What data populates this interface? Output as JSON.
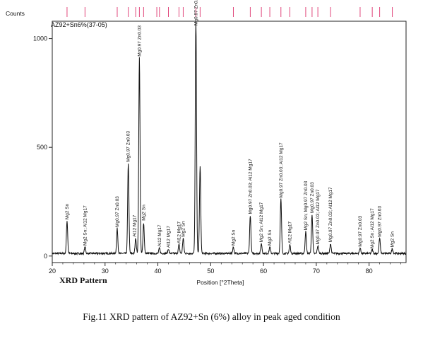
{
  "chart_data": {
    "type": "line",
    "title": "AZ92+Sn6%(37-05)",
    "ylabel": "Counts",
    "xlabel": "Position [°2Theta]",
    "xlim": [
      20,
      87
    ],
    "ylim": [
      -30,
      1080
    ],
    "x_ticks": [
      20,
      30,
      40,
      50,
      60,
      70,
      80
    ],
    "y_ticks": [
      0,
      500,
      1000
    ],
    "x_tick_labels": [
      "20",
      "30",
      "40",
      "50",
      "60",
      "70",
      "80"
    ],
    "y_tick_labels": [
      "0",
      "500",
      "1000"
    ],
    "baseline": 12,
    "peaks": [
      {
        "x": 22.8,
        "y": 150
      },
      {
        "x": 26.2,
        "y": 30
      },
      {
        "x": 32.3,
        "y": 115
      },
      {
        "x": 34.4,
        "y": 415
      },
      {
        "x": 35.8,
        "y": 70
      },
      {
        "x": 36.5,
        "y": 900
      },
      {
        "x": 37.3,
        "y": 140
      },
      {
        "x": 40.3,
        "y": 25
      },
      {
        "x": 42.0,
        "y": 20
      },
      {
        "x": 44.0,
        "y": 40
      },
      {
        "x": 44.8,
        "y": 70
      },
      {
        "x": 47.2,
        "y": 1090
      },
      {
        "x": 48.0,
        "y": 400
      },
      {
        "x": 54.3,
        "y": 30
      },
      {
        "x": 57.5,
        "y": 175
      },
      {
        "x": 59.6,
        "y": 45
      },
      {
        "x": 61.2,
        "y": 30
      },
      {
        "x": 63.3,
        "y": 250
      },
      {
        "x": 65.0,
        "y": 40
      },
      {
        "x": 68.0,
        "y": 100
      },
      {
        "x": 69.2,
        "y": 180
      },
      {
        "x": 70.3,
        "y": 35
      },
      {
        "x": 72.7,
        "y": 45
      },
      {
        "x": 78.3,
        "y": 25
      },
      {
        "x": 80.6,
        "y": 18
      },
      {
        "x": 82.0,
        "y": 70
      },
      {
        "x": 84.4,
        "y": 22
      }
    ],
    "reference_lines": [
      22.8,
      26.2,
      32.3,
      34.4,
      35.8,
      36.5,
      37.3,
      39.8,
      40.3,
      42.0,
      44.0,
      44.8,
      47.2,
      48.0,
      54.3,
      57.5,
      59.6,
      61.2,
      63.3,
      65.0,
      68.0,
      69.2,
      70.3,
      72.7,
      78.3,
      80.6,
      82.0,
      84.4
    ],
    "annotations": [
      {
        "x": 22.8,
        "y": 155,
        "text": "Mg2 Sn"
      },
      {
        "x": 26.2,
        "y": 35,
        "text": "Mg2 Sn; Al12 Mg17"
      },
      {
        "x": 32.3,
        "y": 120,
        "text": "Mg0.97 Zn0.03"
      },
      {
        "x": 34.4,
        "y": 420,
        "text": "Mg0.97 Zn0.03"
      },
      {
        "x": 35.6,
        "y": 75,
        "text": "Al12 Mg17"
      },
      {
        "x": 36.5,
        "y": 905,
        "text": "Mg0.97 Zn0.03"
      },
      {
        "x": 37.3,
        "y": 150,
        "text": "Mg2 Sn"
      },
      {
        "x": 40.3,
        "y": 30,
        "text": "Al12 Mg17"
      },
      {
        "x": 42.0,
        "y": 25,
        "text": "Al12 Mg17"
      },
      {
        "x": 44.0,
        "y": 45,
        "text": "Al12 Mg17"
      },
      {
        "x": 44.8,
        "y": 75,
        "text": "Mg2 Sn"
      },
      {
        "x": 47.2,
        "y": 1095,
        "text": "Mg0.97 Zn0.03"
      },
      {
        "x": 54.3,
        "y": 35,
        "text": "Mg2 Sn"
      },
      {
        "x": 57.5,
        "y": 180,
        "text": "Mg0.97 Zn0.03; Al12 Mg17"
      },
      {
        "x": 59.6,
        "y": 50,
        "text": "Mg2 Sn; Al12 Mg17"
      },
      {
        "x": 61.2,
        "y": 35,
        "text": "Mg2 Sn"
      },
      {
        "x": 63.3,
        "y": 255,
        "text": "Mg0.97 Zn0.03; Al12 Mg17"
      },
      {
        "x": 65.0,
        "y": 45,
        "text": "Al12 Mg17"
      },
      {
        "x": 68.0,
        "y": 105,
        "text": "Mg2 Sn; Mg0.97 Zn0.03"
      },
      {
        "x": 69.2,
        "y": 185,
        "text": "Mg0.97 Zn0.03"
      },
      {
        "x": 70.3,
        "y": 40,
        "text": "Mg0.97 Zn0.03; Al12 Mg17"
      },
      {
        "x": 72.7,
        "y": 50,
        "text": "Mg0.97 Zn0.03; Al12 Mg17"
      },
      {
        "x": 78.3,
        "y": 30,
        "text": "Mg0.97 Zn0.03"
      },
      {
        "x": 80.6,
        "y": 22,
        "text": "Mg2 Sn; Al12 Mg17"
      },
      {
        "x": 82.0,
        "y": 75,
        "text": "Mg0.97 Zn0.03"
      },
      {
        "x": 84.4,
        "y": 27,
        "text": "Mg2 Sn"
      }
    ]
  },
  "figure": {
    "pattern_label": "XRD Pattern",
    "caption": "Fig.11 XRD pattern of AZ92+Sn (6%) alloy in peak aged condition"
  },
  "colors": {
    "trace": "#111111",
    "reference_tick": "#e0457a",
    "frame": "#222222"
  }
}
